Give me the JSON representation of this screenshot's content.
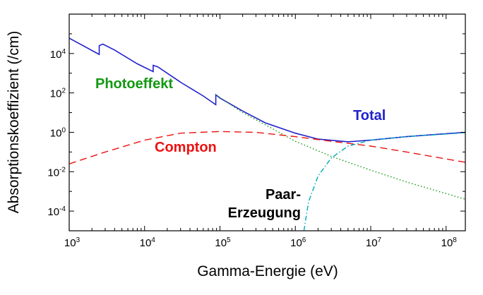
{
  "chart_data": {
    "type": "line",
    "xlabel": "Gamma-Energie (eV)",
    "ylabel": "Absorptionskoeffizient (/cm)",
    "xscale": "log",
    "yscale": "log",
    "xlim": [
      1000,
      180000000
    ],
    "ylim": [
      1e-05,
      1000000
    ],
    "x_ticks": [
      {
        "base": "10",
        "exp": "3",
        "value": 1000
      },
      {
        "base": "10",
        "exp": "4",
        "value": 10000
      },
      {
        "base": "10",
        "exp": "5",
        "value": 100000
      },
      {
        "base": "10",
        "exp": "6",
        "value": 1000000
      },
      {
        "base": "10",
        "exp": "7",
        "value": 10000000
      },
      {
        "base": "10",
        "exp": "8",
        "value": 100000000
      }
    ],
    "y_ticks": [
      {
        "base": "10",
        "exp": "-4",
        "value": 0.0001
      },
      {
        "base": "10",
        "exp": "-2",
        "value": 0.01
      },
      {
        "base": "10",
        "exp": "0",
        "value": 1
      },
      {
        "base": "10",
        "exp": "2",
        "value": 100
      },
      {
        "base": "10",
        "exp": "4",
        "value": 10000
      }
    ],
    "grid": false,
    "legend": "none",
    "series": [
      {
        "name": "Total",
        "color": "#2222cc",
        "style": "solid",
        "points": [
          [
            1000,
            60000
          ],
          [
            2500,
            9000
          ],
          [
            2500,
            25000
          ],
          [
            2800,
            30000
          ],
          [
            4000,
            15000
          ],
          [
            8000,
            3000
          ],
          [
            13000,
            1200
          ],
          [
            13000,
            2500
          ],
          [
            15000,
            2100
          ],
          [
            30000,
            350
          ],
          [
            60000,
            70
          ],
          [
            88000,
            25
          ],
          [
            88000,
            80
          ],
          [
            100000,
            55
          ],
          [
            200000,
            12
          ],
          [
            400000,
            3
          ],
          [
            1000000,
            0.9
          ],
          [
            2000000,
            0.45
          ],
          [
            5000000,
            0.33
          ],
          [
            10000000,
            0.4
          ],
          [
            30000000,
            0.6
          ],
          [
            80000000,
            0.8
          ],
          [
            180000000,
            1.0
          ]
        ]
      },
      {
        "name": "Photoeffekt",
        "color": "#119911",
        "style": "dotted",
        "points": [
          [
            88000,
            80
          ],
          [
            200000,
            10
          ],
          [
            500000,
            1.5
          ],
          [
            1000000,
            0.35
          ],
          [
            3000000,
            0.06
          ],
          [
            10000000,
            0.012
          ],
          [
            30000000,
            0.003
          ],
          [
            180000000,
            0.0004
          ]
        ]
      },
      {
        "name": "Compton",
        "color": "#ee1111",
        "style": "dashed",
        "points": [
          [
            1000,
            0.025
          ],
          [
            3000,
            0.1
          ],
          [
            10000,
            0.4
          ],
          [
            30000,
            0.9
          ],
          [
            100000,
            1.1
          ],
          [
            300000,
            1.0
          ],
          [
            1000000,
            0.6
          ],
          [
            3000000,
            0.35
          ],
          [
            10000000,
            0.2
          ],
          [
            30000000,
            0.1
          ],
          [
            180000000,
            0.03
          ]
        ]
      },
      {
        "name": "Paar-Erzeugung",
        "color": "#00a8b8",
        "style": "dashdot",
        "points": [
          [
            1300000,
            1e-05
          ],
          [
            1500000,
            0.0003
          ],
          [
            2000000,
            0.006
          ],
          [
            3000000,
            0.05
          ],
          [
            5000000,
            0.2
          ],
          [
            10000000,
            0.4
          ],
          [
            30000000,
            0.6
          ],
          [
            180000000,
            0.95
          ]
        ]
      }
    ],
    "annotations": [
      {
        "id": "photo",
        "text": "Photoeffekt",
        "color": "#119911"
      },
      {
        "id": "total",
        "text": "Total",
        "color": "#2222cc"
      },
      {
        "id": "compton",
        "text": "Compton",
        "color": "#ee1111"
      },
      {
        "id": "paar1",
        "text": "Paar-",
        "color": "#000000"
      },
      {
        "id": "paar2",
        "text": "Erzeugung",
        "color": "#000000"
      }
    ]
  }
}
